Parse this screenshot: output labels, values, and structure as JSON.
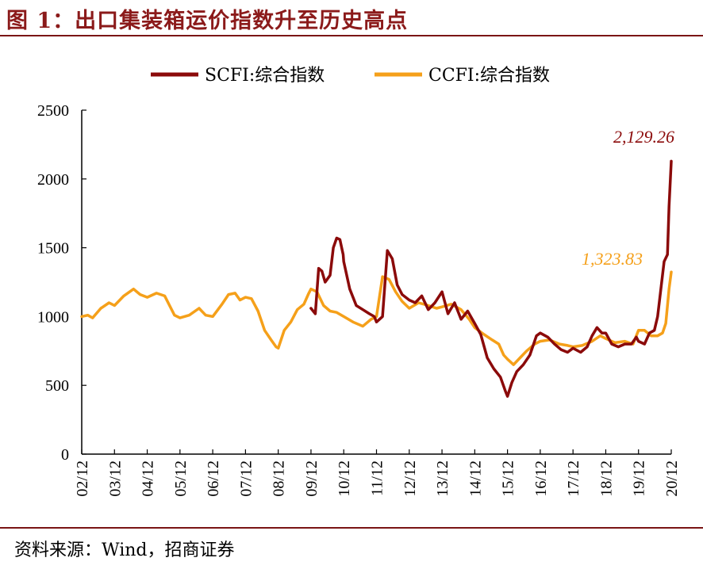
{
  "header": {
    "title": "图 1：出口集装箱运价指数升至历史高点"
  },
  "footer": {
    "source": "资料来源：Wind，招商证券"
  },
  "colors": {
    "scfi": "#8B0A0A",
    "ccfi": "#F5A01A",
    "accent": "#8B1A1A"
  },
  "chart_data": {
    "type": "line",
    "title": "",
    "xlabel": "",
    "ylabel": "",
    "ylim": [
      0,
      2500
    ],
    "yticks": [
      0,
      500,
      1000,
      1500,
      2000,
      2500
    ],
    "xlim": [
      2002.917,
      2020.917
    ],
    "xtick_labels": [
      "02/12",
      "03/12",
      "04/12",
      "05/12",
      "06/12",
      "07/12",
      "08/12",
      "09/12",
      "10/12",
      "11/12",
      "12/12",
      "13/12",
      "14/12",
      "15/12",
      "16/12",
      "17/12",
      "18/12",
      "19/12",
      "20/12"
    ],
    "legend": {
      "placement": "top-center",
      "entries": [
        "SCFI:综合指数",
        "CCFI:综合指数"
      ]
    },
    "grid": false,
    "annotations": [
      {
        "series": "SCFI:综合指数",
        "text": "2,129.26"
      },
      {
        "series": "CCFI:综合指数",
        "text": "1,323.83"
      }
    ],
    "series": [
      {
        "name": "CCFI:综合指数",
        "points": [
          [
            2002.917,
            1000
          ],
          [
            2003.1,
            1010
          ],
          [
            2003.25,
            990
          ],
          [
            2003.5,
            1060
          ],
          [
            2003.75,
            1100
          ],
          [
            2003.917,
            1080
          ],
          [
            2004.2,
            1150
          ],
          [
            2004.5,
            1200
          ],
          [
            2004.7,
            1160
          ],
          [
            2004.917,
            1140
          ],
          [
            2005.2,
            1170
          ],
          [
            2005.45,
            1150
          ],
          [
            2005.6,
            1080
          ],
          [
            2005.75,
            1010
          ],
          [
            2005.917,
            990
          ],
          [
            2006.2,
            1010
          ],
          [
            2006.5,
            1060
          ],
          [
            2006.7,
            1010
          ],
          [
            2006.917,
            1000
          ],
          [
            2007.2,
            1090
          ],
          [
            2007.4,
            1160
          ],
          [
            2007.6,
            1170
          ],
          [
            2007.75,
            1120
          ],
          [
            2007.917,
            1140
          ],
          [
            2008.1,
            1130
          ],
          [
            2008.3,
            1040
          ],
          [
            2008.5,
            900
          ],
          [
            2008.7,
            830
          ],
          [
            2008.85,
            780
          ],
          [
            2008.917,
            770
          ],
          [
            2009.1,
            900
          ],
          [
            2009.3,
            960
          ],
          [
            2009.5,
            1050
          ],
          [
            2009.7,
            1090
          ],
          [
            2009.85,
            1170
          ],
          [
            2009.917,
            1200
          ],
          [
            2010.1,
            1180
          ],
          [
            2010.3,
            1080
          ],
          [
            2010.5,
            1040
          ],
          [
            2010.7,
            1030
          ],
          [
            2010.917,
            1000
          ],
          [
            2011.2,
            960
          ],
          [
            2011.5,
            930
          ],
          [
            2011.75,
            980
          ],
          [
            2011.917,
            1000
          ],
          [
            2012.1,
            1290
          ],
          [
            2012.3,
            1270
          ],
          [
            2012.5,
            1180
          ],
          [
            2012.7,
            1110
          ],
          [
            2012.917,
            1060
          ],
          [
            2013.2,
            1100
          ],
          [
            2013.5,
            1080
          ],
          [
            2013.75,
            1060
          ],
          [
            2013.917,
            1070
          ],
          [
            2014.2,
            1090
          ],
          [
            2014.5,
            1050
          ],
          [
            2014.75,
            980
          ],
          [
            2014.917,
            920
          ],
          [
            2015.2,
            870
          ],
          [
            2015.45,
            830
          ],
          [
            2015.65,
            800
          ],
          [
            2015.8,
            720
          ],
          [
            2015.917,
            690
          ],
          [
            2016.1,
            650
          ],
          [
            2016.3,
            700
          ],
          [
            2016.5,
            750
          ],
          [
            2016.75,
            800
          ],
          [
            2016.917,
            820
          ],
          [
            2017.2,
            830
          ],
          [
            2017.5,
            800
          ],
          [
            2017.75,
            790
          ],
          [
            2017.917,
            780
          ],
          [
            2018.2,
            790
          ],
          [
            2018.5,
            820
          ],
          [
            2018.75,
            860
          ],
          [
            2018.917,
            840
          ],
          [
            2019.2,
            810
          ],
          [
            2019.5,
            820
          ],
          [
            2019.75,
            800
          ],
          [
            2019.917,
            900
          ],
          [
            2020.1,
            900
          ],
          [
            2020.3,
            860
          ],
          [
            2020.5,
            860
          ],
          [
            2020.65,
            880
          ],
          [
            2020.75,
            950
          ],
          [
            2020.85,
            1200
          ],
          [
            2020.917,
            1323.83
          ]
        ]
      },
      {
        "name": "SCFI:综合指数",
        "points": [
          [
            2009.917,
            1060
          ],
          [
            2010.05,
            1020
          ],
          [
            2010.15,
            1350
          ],
          [
            2010.25,
            1330
          ],
          [
            2010.35,
            1250
          ],
          [
            2010.5,
            1300
          ],
          [
            2010.6,
            1500
          ],
          [
            2010.7,
            1570
          ],
          [
            2010.8,
            1560
          ],
          [
            2010.9,
            1450
          ],
          [
            2010.917,
            1400
          ],
          [
            2011.1,
            1200
          ],
          [
            2011.3,
            1080
          ],
          [
            2011.5,
            1050
          ],
          [
            2011.7,
            1020
          ],
          [
            2011.85,
            1000
          ],
          [
            2011.917,
            960
          ],
          [
            2012.1,
            1000
          ],
          [
            2012.25,
            1480
          ],
          [
            2012.4,
            1420
          ],
          [
            2012.55,
            1230
          ],
          [
            2012.7,
            1160
          ],
          [
            2012.917,
            1120
          ],
          [
            2013.1,
            1100
          ],
          [
            2013.3,
            1150
          ],
          [
            2013.5,
            1050
          ],
          [
            2013.7,
            1100
          ],
          [
            2013.917,
            1180
          ],
          [
            2014.1,
            1020
          ],
          [
            2014.3,
            1100
          ],
          [
            2014.5,
            980
          ],
          [
            2014.7,
            1040
          ],
          [
            2014.917,
            950
          ],
          [
            2015.1,
            870
          ],
          [
            2015.3,
            700
          ],
          [
            2015.5,
            620
          ],
          [
            2015.7,
            560
          ],
          [
            2015.85,
            460
          ],
          [
            2015.917,
            420
          ],
          [
            2016.05,
            520
          ],
          [
            2016.2,
            600
          ],
          [
            2016.4,
            650
          ],
          [
            2016.6,
            720
          ],
          [
            2016.8,
            860
          ],
          [
            2016.917,
            880
          ],
          [
            2017.15,
            850
          ],
          [
            2017.35,
            800
          ],
          [
            2017.55,
            760
          ],
          [
            2017.75,
            740
          ],
          [
            2017.917,
            770
          ],
          [
            2018.15,
            740
          ],
          [
            2018.35,
            780
          ],
          [
            2018.5,
            860
          ],
          [
            2018.65,
            920
          ],
          [
            2018.8,
            880
          ],
          [
            2018.917,
            880
          ],
          [
            2019.1,
            800
          ],
          [
            2019.3,
            780
          ],
          [
            2019.5,
            800
          ],
          [
            2019.7,
            800
          ],
          [
            2019.85,
            850
          ],
          [
            2019.917,
            820
          ],
          [
            2020.1,
            800
          ],
          [
            2020.25,
            880
          ],
          [
            2020.4,
            900
          ],
          [
            2020.5,
            1000
          ],
          [
            2020.6,
            1200
          ],
          [
            2020.7,
            1400
          ],
          [
            2020.8,
            1450
          ],
          [
            2020.85,
            1800
          ],
          [
            2020.917,
            2129.26
          ]
        ]
      }
    ]
  }
}
